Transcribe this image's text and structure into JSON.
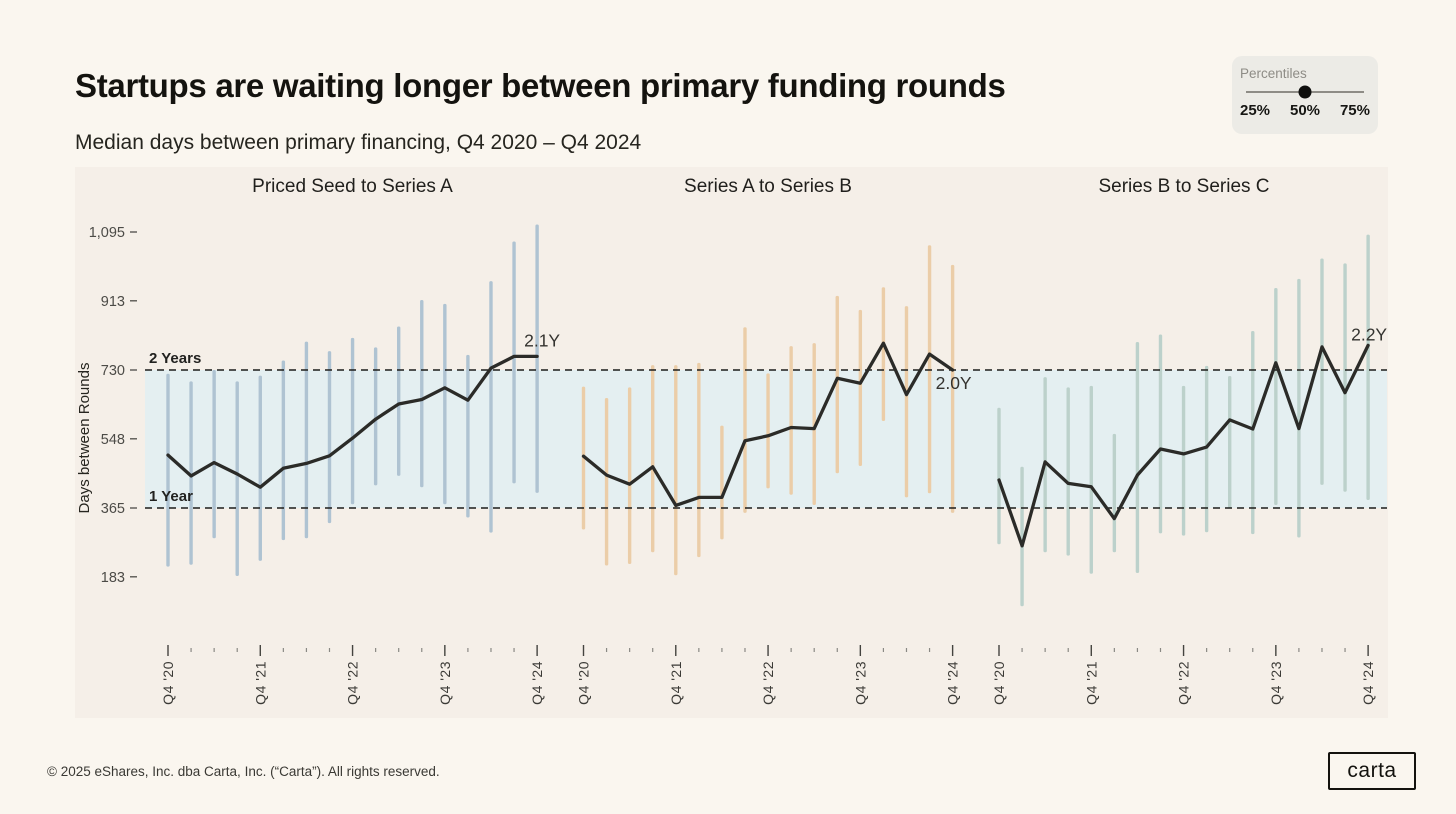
{
  "header": {
    "title": "Startups are waiting longer between primary funding rounds",
    "subtitle": "Median days between primary financing, Q4 2020 – Q4 2024"
  },
  "percentiles": {
    "label": "Percentiles",
    "options": [
      "25%",
      "50%",
      "75%"
    ],
    "selected": "50%"
  },
  "footer": {
    "copyright": "© 2025 eShares, Inc. dba Carta, Inc. (“Carta”). All rights reserved.",
    "logo_text": "carta"
  },
  "chart_data": {
    "type": "line",
    "title": "Startups are waiting longer between primary funding rounds",
    "subtitle": "Median days between primary financing, Q4 2020 – Q4 2024",
    "ylabel": "Days between Rounds",
    "yticks": {
      "values": [
        183,
        365,
        548,
        730,
        913,
        1095
      ],
      "labels": [
        "183",
        "365",
        "548",
        "730",
        "913",
        "1,095"
      ]
    },
    "ylim": [
      100,
      1160
    ],
    "x_axis": {
      "labeled_ticks": [
        "Q4 '20",
        "Q4 '21",
        "Q4 '22",
        "Q4 '23",
        "Q4 '24"
      ],
      "quarters_per_panel": 17,
      "label_every": 4
    },
    "reference_lines": [
      {
        "label": "1 Year",
        "days": 365
      },
      {
        "label": "2 Years",
        "days": 730
      }
    ],
    "band": {
      "from_days": 365,
      "to_days": 730,
      "color": "#E4EFF1"
    },
    "line_color": "#2B2B28",
    "grid": false,
    "panels": [
      {
        "title": "Priced Seed to Series A",
        "bar_color": "#AFC3D2",
        "end_label": "2.1Y",
        "median": [
          505,
          450,
          485,
          455,
          420,
          470,
          483,
          503,
          550,
          600,
          640,
          652,
          683,
          650,
          735,
          766,
          766
        ],
        "p25": [
          210,
          215,
          285,
          185,
          225,
          280,
          285,
          325,
          375,
          425,
          450,
          420,
          375,
          340,
          300,
          430,
          405
        ],
        "p75": [
          720,
          700,
          730,
          700,
          715,
          755,
          805,
          780,
          815,
          790,
          845,
          915,
          905,
          770,
          965,
          1070,
          1115
        ]
      },
      {
        "title": "Series A to Series B",
        "bar_color": "#EBCDA8",
        "end_label": "2.0Y",
        "median": [
          502,
          452,
          428,
          474,
          372,
          393,
          393,
          543,
          556,
          578,
          575,
          708,
          695,
          801,
          665,
          772,
          730
        ],
        "p25": [
          308,
          213,
          217,
          248,
          187,
          235,
          282,
          352,
          417,
          400,
          373,
          457,
          476,
          595,
          393,
          404,
          352
        ],
        "p75": [
          686,
          656,
          684,
          743,
          743,
          749,
          583,
          843,
          721,
          793,
          801,
          926,
          889,
          949,
          899,
          1060,
          1008
        ]
      },
      {
        "title": "Series B to Series C",
        "bar_color": "#BCD1CB",
        "end_label": "2.2Y",
        "median": [
          439,
          265,
          487,
          430,
          421,
          337,
          452,
          521,
          508,
          526,
          598,
          574,
          749,
          575,
          791,
          670,
          795
        ],
        "p25": [
          269,
          105,
          248,
          239,
          191,
          248,
          193,
          298,
          292,
          301,
          365,
          296,
          373,
          287,
          426,
          408,
          386
        ],
        "p75": [
          630,
          474,
          711,
          684,
          688,
          561,
          804,
          824,
          688,
          741,
          714,
          833,
          947,
          971,
          1025,
          1012,
          1088
        ]
      }
    ]
  }
}
